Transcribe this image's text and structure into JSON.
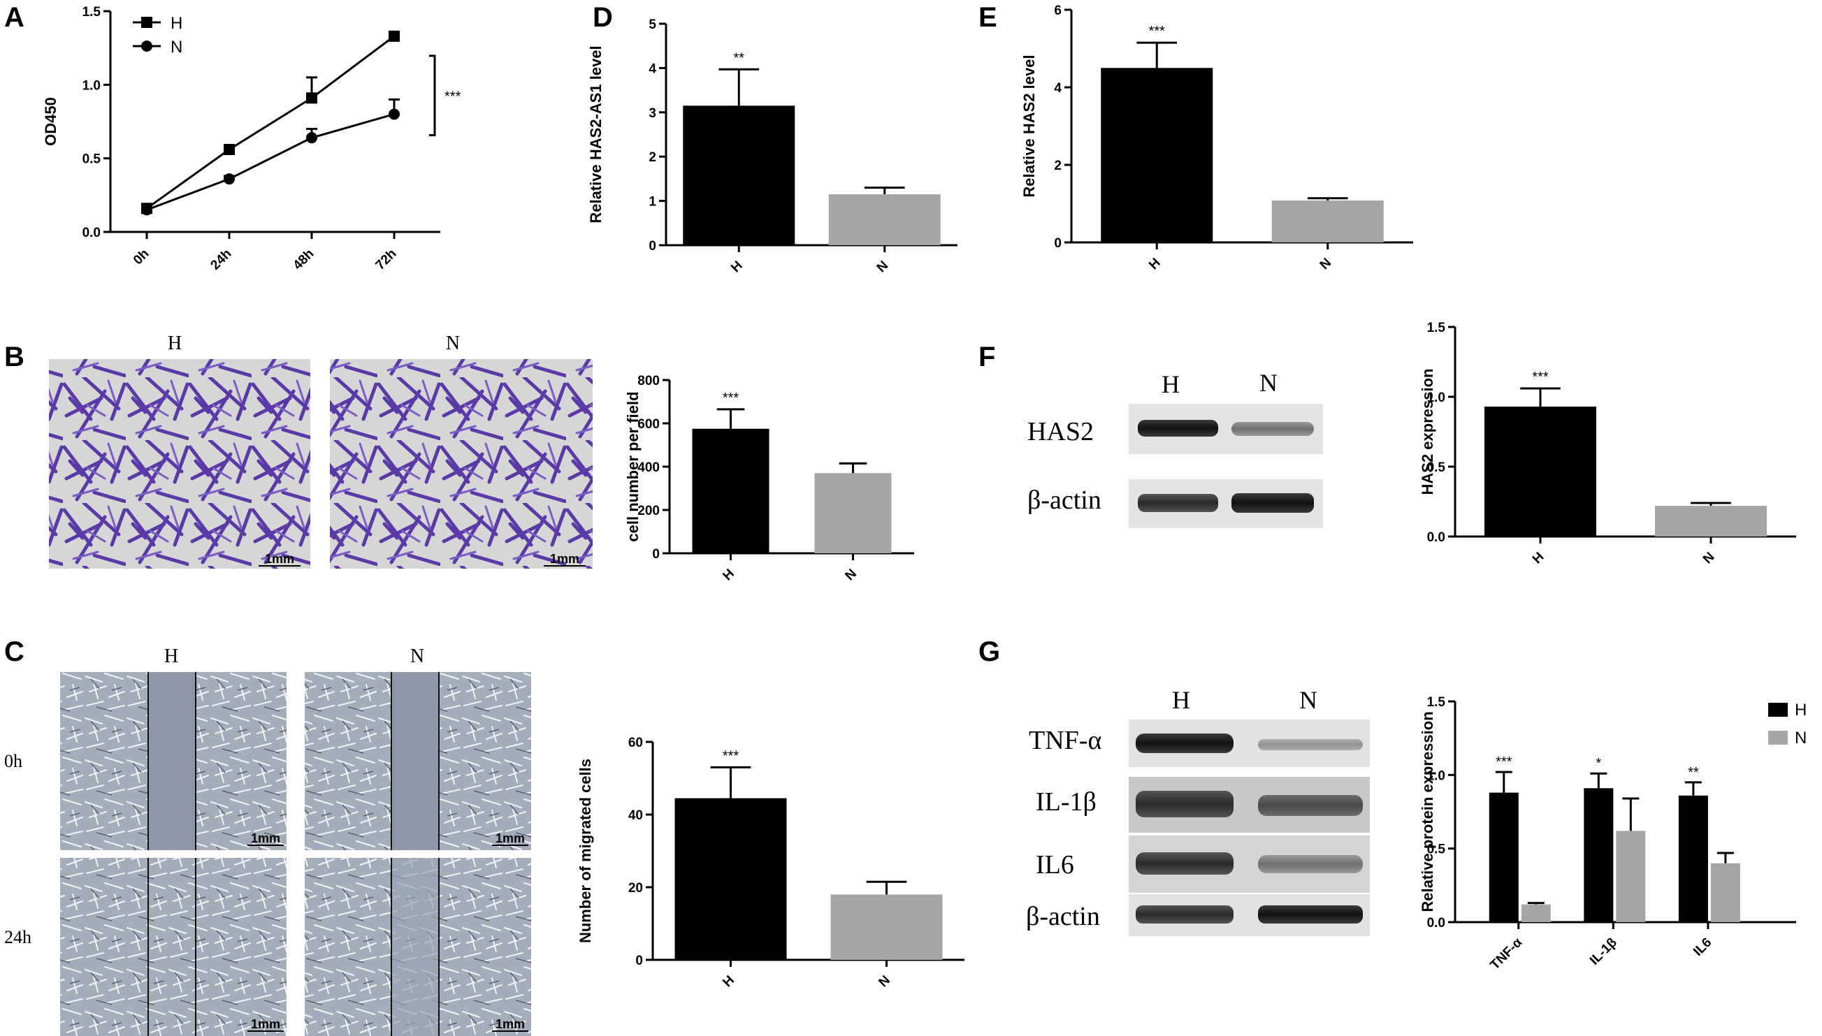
{
  "panels": {
    "A": "A",
    "B": "B",
    "C": "C",
    "D": "D",
    "E": "E",
    "F": "F",
    "G": "G"
  },
  "images": {
    "b_headers": [
      "H",
      "N"
    ],
    "c_headers": [
      "H",
      "N"
    ],
    "c_rows": [
      "0h",
      "24h"
    ],
    "b_scale": "1mm",
    "c_scale": "1mm"
  },
  "blots": {
    "f_headers": [
      "H",
      "N"
    ],
    "f_rows": [
      "HAS2",
      "β-actin"
    ],
    "g_headers": [
      "H",
      "N"
    ],
    "g_rows": [
      "TNF-α",
      "IL-1β",
      "IL6",
      "β-actin"
    ]
  },
  "colors": {
    "H": "#000000",
    "N": "#a6a6a6",
    "stain": "#5a3aa6",
    "field": "#d8d8d8",
    "phase": "#9aa4b4"
  },
  "chart_data": [
    {
      "id": "A",
      "type": "line",
      "x": [
        "0h",
        "24h",
        "48h",
        "72h"
      ],
      "series": [
        {
          "name": "H",
          "values": [
            0.16,
            0.56,
            0.91,
            1.33
          ],
          "errors": [
            0.02,
            0.03,
            0.14,
            0.02
          ],
          "marker": "square"
        },
        {
          "name": "N",
          "values": [
            0.15,
            0.36,
            0.64,
            0.8
          ],
          "errors": [
            0.01,
            0.02,
            0.06,
            0.1
          ],
          "marker": "circle"
        }
      ],
      "ylabel": "OD450",
      "ylim": [
        0,
        1.5
      ],
      "yticks": [
        "0.0",
        "0.5",
        "1.0",
        "1.5"
      ],
      "annotation": "***",
      "legend": "top-left"
    },
    {
      "id": "B",
      "type": "bar",
      "categories": [
        "H",
        "N"
      ],
      "values": [
        575,
        370
      ],
      "errors": [
        90,
        45
      ],
      "ylabel": "cell number per field",
      "ylim": [
        0,
        800
      ],
      "yticks": [
        "0",
        "200",
        "400",
        "600",
        "800"
      ],
      "sig": [
        "***",
        ""
      ]
    },
    {
      "id": "C",
      "type": "bar",
      "categories": [
        "H",
        "N"
      ],
      "values": [
        44.5,
        18
      ],
      "errors": [
        8.5,
        3.5
      ],
      "ylabel": "Number of migrated cells",
      "ylim": [
        0,
        60
      ],
      "yticks": [
        "0",
        "20",
        "40",
        "60"
      ],
      "sig": [
        "***",
        ""
      ]
    },
    {
      "id": "D",
      "type": "bar",
      "categories": [
        "H",
        "N"
      ],
      "values": [
        3.15,
        1.15
      ],
      "errors": [
        0.82,
        0.15
      ],
      "ylabel": "Relative HAS2-AS1 level",
      "ylim": [
        0,
        5
      ],
      "yticks": [
        "0",
        "1",
        "2",
        "3",
        "4",
        "5"
      ],
      "sig": [
        "**",
        ""
      ]
    },
    {
      "id": "E",
      "type": "bar",
      "categories": [
        "H",
        "N"
      ],
      "values": [
        4.5,
        1.08
      ],
      "errors": [
        0.65,
        0.06
      ],
      "ylabel": "Relative HAS2 level",
      "ylim": [
        0,
        6
      ],
      "yticks": [
        "0",
        "2",
        "4",
        "6"
      ],
      "sig": [
        "***",
        ""
      ]
    },
    {
      "id": "F",
      "type": "bar",
      "categories": [
        "H",
        "N"
      ],
      "values": [
        0.93,
        0.22
      ],
      "errors": [
        0.13,
        0.02
      ],
      "ylabel": "HAS2 expression",
      "ylim": [
        0,
        1.5
      ],
      "yticks": [
        "0.0",
        "0.5",
        "1.0",
        "1.5"
      ],
      "sig": [
        "***",
        ""
      ]
    },
    {
      "id": "G",
      "type": "bar",
      "categories": [
        "TNF-α",
        "IL-1β",
        "IL6"
      ],
      "series": [
        {
          "name": "H",
          "values": [
            0.88,
            0.91,
            0.86
          ],
          "errors": [
            0.14,
            0.1,
            0.09
          ]
        },
        {
          "name": "N",
          "values": [
            0.12,
            0.62,
            0.4
          ],
          "errors": [
            0.01,
            0.22,
            0.07
          ]
        }
      ],
      "ylabel": "Relative protein expression",
      "ylim": [
        0,
        1.5
      ],
      "yticks": [
        "0.0",
        "0.5",
        "1.0",
        "1.5"
      ],
      "sig": [
        "***",
        "*",
        "**"
      ],
      "legend": "top-right"
    }
  ]
}
